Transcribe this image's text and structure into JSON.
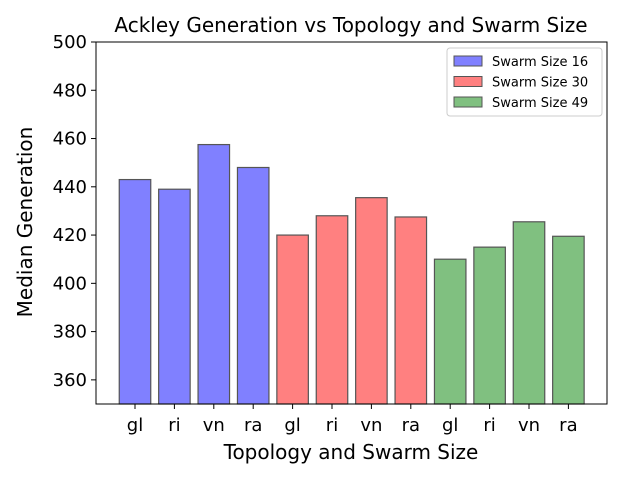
{
  "chart_data": {
    "type": "bar",
    "title": "Ackley Generation vs Topology and Swarm Size",
    "xlabel": "Topology and Swarm Size",
    "ylabel": "Median Generation",
    "ylim": [
      350,
      500
    ],
    "yticks": [
      360,
      380,
      400,
      420,
      440,
      460,
      480,
      500
    ],
    "categories": [
      "gl",
      "ri",
      "vn",
      "ra",
      "gl",
      "ri",
      "vn",
      "ra",
      "gl",
      "ri",
      "vn",
      "ra"
    ],
    "grid": false,
    "legend_position": "top-right",
    "series": [
      {
        "name": "Swarm Size 16",
        "color": "#8080ff",
        "positions": [
          0,
          1,
          2,
          3
        ],
        "values": [
          443,
          439,
          457.5,
          448
        ]
      },
      {
        "name": "Swarm Size 30",
        "color": "#ff8080",
        "positions": [
          4,
          5,
          6,
          7
        ],
        "values": [
          420,
          428,
          435.5,
          427.5
        ]
      },
      {
        "name": "Swarm Size 49",
        "color": "#80c080",
        "positions": [
          8,
          9,
          10,
          11
        ],
        "values": [
          410,
          415,
          425.5,
          419.5
        ]
      }
    ]
  }
}
